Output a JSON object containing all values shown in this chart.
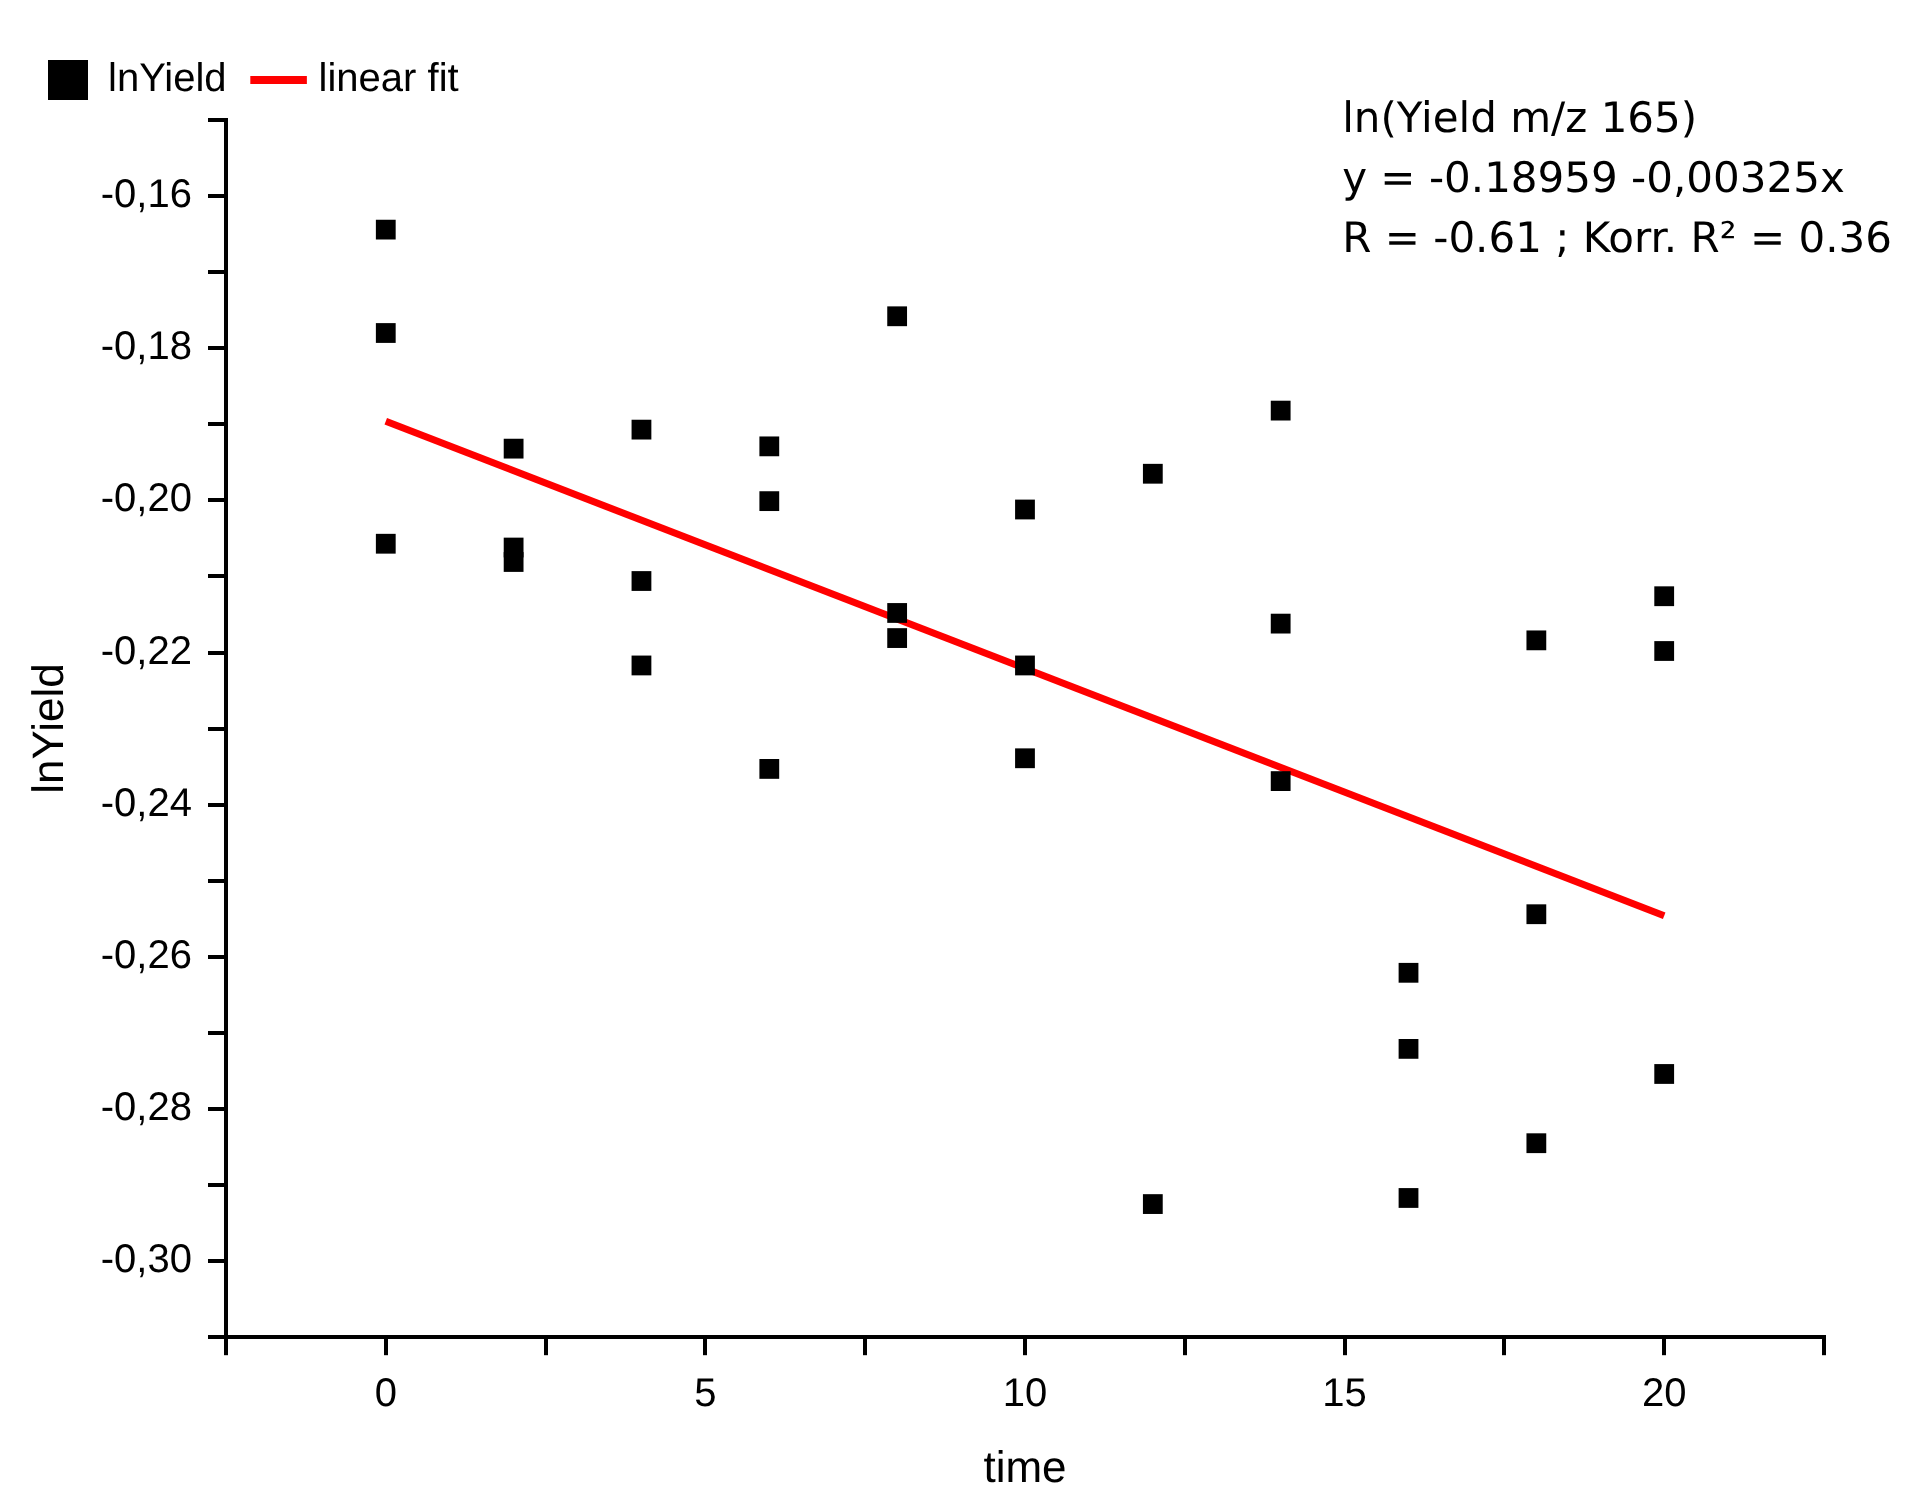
{
  "chart_data": {
    "type": "scatter",
    "xlabel": "time",
    "ylabel": "lnYield",
    "xlim": [
      -2.5,
      22.5
    ],
    "xticks": [
      {
        "value": -2.5,
        "label": null
      },
      0,
      {
        "value": 2.5,
        "label": null
      },
      5,
      {
        "value": 7.5,
        "label": null
      },
      10,
      {
        "value": 12.5,
        "label": null
      },
      15,
      {
        "value": 17.5,
        "label": null
      },
      20,
      {
        "value": 22.5,
        "label": null
      }
    ],
    "ylim": [
      -0.31,
      -0.15
    ],
    "yticks": [
      {
        "value": -0.31,
        "label": null
      },
      {
        "value": -0.3,
        "label": "-0,30"
      },
      {
        "value": -0.29,
        "label": null
      },
      {
        "value": -0.28,
        "label": "-0,28"
      },
      {
        "value": -0.27,
        "label": null
      },
      {
        "value": -0.26,
        "label": "-0,26"
      },
      {
        "value": -0.25,
        "label": null
      },
      {
        "value": -0.24,
        "label": "-0,24"
      },
      {
        "value": -0.23,
        "label": null
      },
      {
        "value": -0.22,
        "label": "-0,22"
      },
      {
        "value": -0.21,
        "label": null
      },
      {
        "value": -0.2,
        "label": "-0,20"
      },
      {
        "value": -0.19,
        "label": null
      },
      {
        "value": -0.18,
        "label": "-0,18"
      },
      {
        "value": -0.17,
        "label": null
      },
      {
        "value": -0.16,
        "label": "-0,16"
      },
      {
        "value": -0.15,
        "label": null
      }
    ],
    "grid": false,
    "legend": "top left",
    "marker": "square",
    "series": [
      {
        "name": "lnYield",
        "color": "#000000",
        "x": [
          0,
          0,
          0,
          2,
          2,
          2,
          4,
          4,
          4,
          6,
          6,
          6,
          8,
          8,
          8,
          10,
          10,
          10,
          12,
          12,
          14,
          14,
          14,
          16,
          16,
          16,
          18,
          18,
          18,
          20,
          20,
          20
        ],
        "values": [
          -0.1644,
          -0.178,
          -0.2057,
          -0.1932,
          -0.2062,
          -0.2081,
          -0.1907,
          -0.2106,
          -0.2217,
          -0.1929,
          -0.2001,
          -0.2353,
          -0.1758,
          -0.2148,
          -0.2181,
          -0.2012,
          -0.2217,
          -0.2339,
          -0.1965,
          -0.2925,
          -0.1882,
          -0.2162,
          -0.2369,
          -0.2621,
          -0.2721,
          -0.2917,
          -0.2184,
          -0.2544,
          -0.2845,
          -0.2126,
          -0.2198,
          -0.2754
        ]
      },
      {
        "name": "linear fit",
        "type": "line",
        "color": "#ff0000",
        "marker": "none",
        "line_style": "solid",
        "x": [
          0,
          20
        ],
        "values": [
          -0.1896,
          -0.2546
        ]
      }
    ],
    "annotations": [
      "ln(Yield m/z 165)",
      "y = -0.18959 -0,00325x",
      "R = -0.61 ; Korr. R² = 0.36"
    ]
  }
}
